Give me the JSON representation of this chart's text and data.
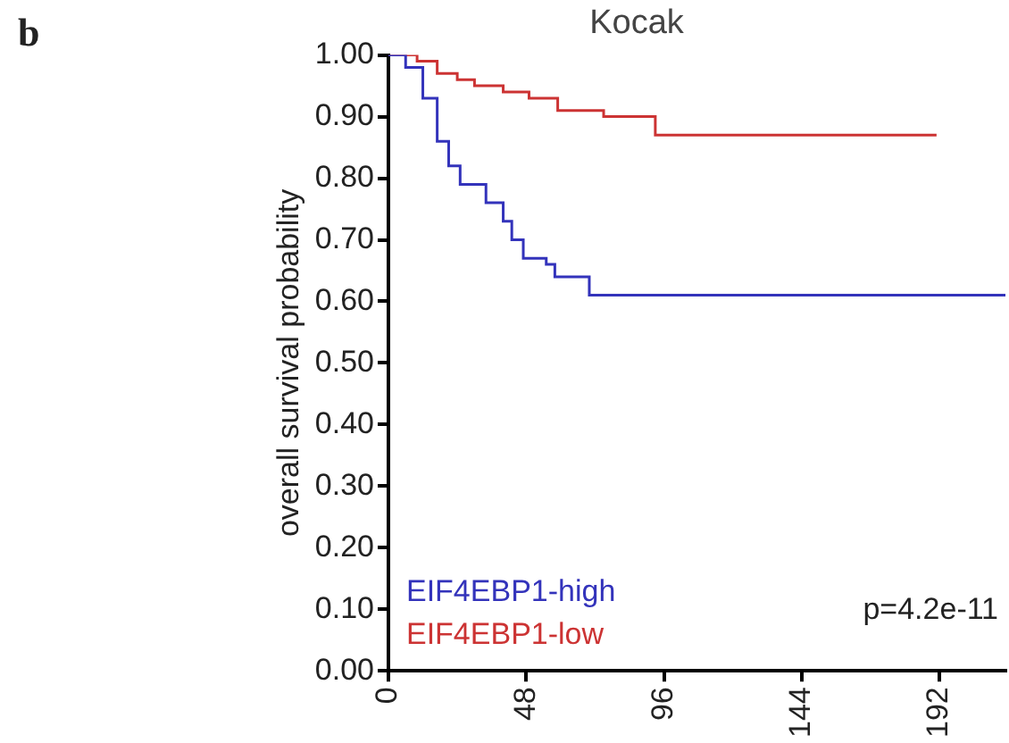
{
  "chart_data": {
    "type": "step",
    "title": "Kocak",
    "ylabel": "overall survival probability",
    "annotations": [
      "b",
      "p=4.2e-11"
    ],
    "xlim": [
      0,
      215
    ],
    "xticks": [
      0,
      48,
      96,
      144,
      192
    ],
    "ylim": [
      0,
      1
    ],
    "yticks": [
      {
        "value": 0,
        "label": "0.00"
      },
      {
        "value": 0.1,
        "label": "0.10"
      },
      {
        "value": 0.2,
        "label": "0.20"
      },
      {
        "value": 0.3,
        "label": "0.30"
      },
      {
        "value": 0.4,
        "label": "0.40"
      },
      {
        "value": 0.5,
        "label": "0.50"
      },
      {
        "value": 0.6,
        "label": "0.60"
      },
      {
        "value": 0.7,
        "label": "0.70"
      },
      {
        "value": 0.8,
        "label": "0.80"
      },
      {
        "value": 0.9,
        "label": "0.90"
      },
      {
        "value": 1,
        "label": "1.00"
      }
    ],
    "grid": false,
    "legend": "bottom left",
    "marker": "none",
    "series": [
      {
        "name": "EIF4EBP1-high",
        "color": "#3333bb",
        "x": [
          0,
          6,
          12,
          17,
          21,
          25,
          34,
          40,
          43,
          47,
          55,
          58,
          67,
          70,
          215
        ],
        "values": [
          1,
          0.98,
          0.93,
          0.86,
          0.82,
          0.79,
          0.76,
          0.73,
          0.7,
          0.67,
          0.66,
          0.64,
          0.64,
          0.61,
          0.61
        ]
      },
      {
        "name": "EIF4EBP1-low",
        "color": "#cc3333",
        "x": [
          0,
          10,
          17,
          24,
          30,
          40,
          49,
          59,
          75,
          93,
          191
        ],
        "values": [
          1,
          0.99,
          0.97,
          0.96,
          0.95,
          0.94,
          0.93,
          0.91,
          0.9,
          0.87,
          0.87
        ]
      }
    ]
  }
}
